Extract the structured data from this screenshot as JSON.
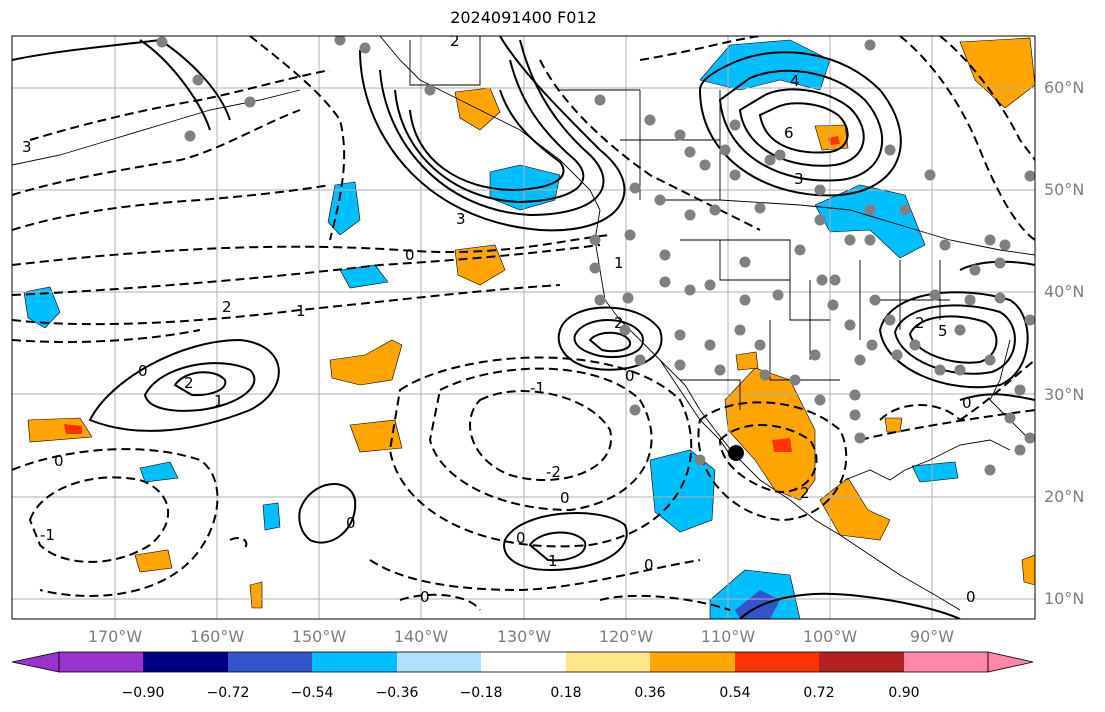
{
  "title": "2024091400 F012",
  "map": {
    "lat_labels": [
      "60°N",
      "50°N",
      "40°N",
      "30°N",
      "20°N",
      "10°N"
    ],
    "lon_labels": [
      "170°W",
      "160°W",
      "150°W",
      "140°W",
      "130°W",
      "120°W",
      "110°W",
      "100°W",
      "90°W"
    ],
    "gridline_color": "#b0b0b0"
  },
  "colorbar": {
    "colors": [
      "#9933cc",
      "#000080",
      "#3355cc",
      "#00bfff",
      "#b0e0ff",
      "#ffffff",
      "#ffe68a",
      "#ffa500",
      "#ff3300",
      "#b22222",
      "#ff88aa"
    ],
    "tick_labels": [
      "−0.90",
      "−0.72",
      "−0.54",
      "−0.36",
      "−0.18",
      "0.18",
      "0.36",
      "0.54",
      "0.72",
      "0.90"
    ]
  },
  "contour_labels": [
    "2",
    "1",
    "0",
    "-1",
    "-2",
    "3",
    "4",
    "6",
    "5"
  ],
  "fill_colors": {
    "orange": "#ffa500",
    "red": "#ff3300",
    "cyan": "#00bfff",
    "blue": "#3355cc"
  },
  "station_color": "#808080"
}
